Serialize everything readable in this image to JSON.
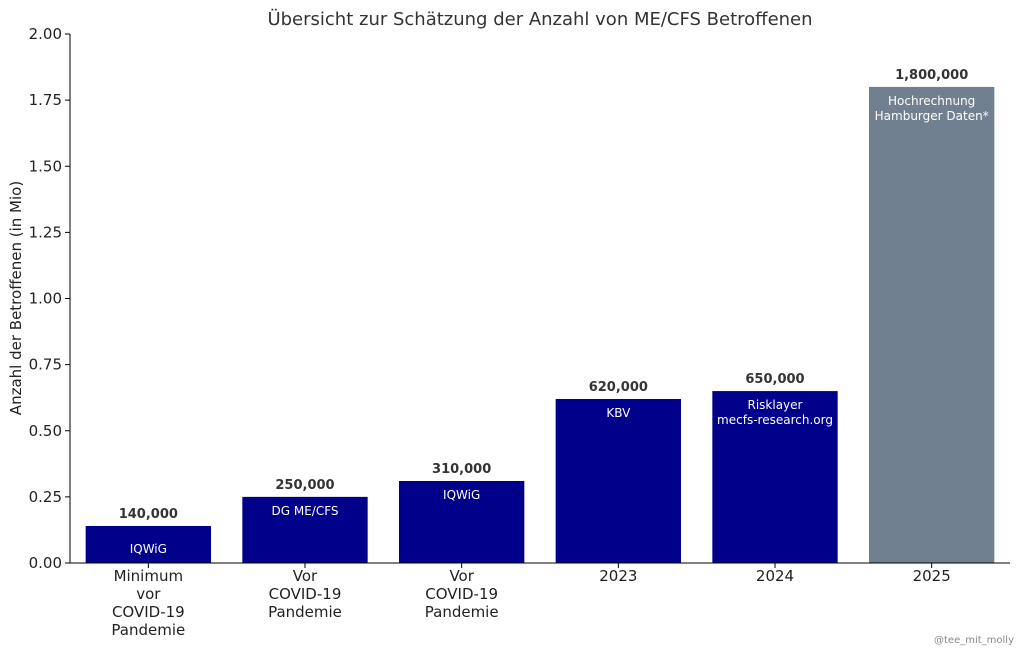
{
  "chart_data": {
    "type": "bar",
    "title": "Übersicht zur Schätzung der Anzahl von ME/CFS Betroffenen",
    "xlabel": "",
    "ylabel": "Anzahl der Betroffenen (in Mio)",
    "ylim": [
      0,
      2.0
    ],
    "yticks": [
      "0.00",
      "0.25",
      "0.50",
      "0.75",
      "1.00",
      "1.25",
      "1.50",
      "1.75",
      "2.00"
    ],
    "grid": false,
    "categories": [
      [
        "Minimum",
        "vor",
        "COVID-19",
        "Pandemie"
      ],
      [
        "Vor",
        "COVID-19",
        "Pandemie"
      ],
      [
        "Vor",
        "COVID-19",
        "Pandemie"
      ],
      [
        "2023"
      ],
      [
        "2024"
      ],
      [
        "2025"
      ]
    ],
    "values": [
      0.14,
      0.25,
      0.31,
      0.62,
      0.65,
      1.8
    ],
    "value_labels": [
      "140,000",
      "250,000",
      "310,000",
      "620,000",
      "650,000",
      "1,800,000"
    ],
    "sources": [
      [
        "IQWiG"
      ],
      [
        "DG ME/CFS"
      ],
      [
        "IQWiG"
      ],
      [
        "KBV"
      ],
      [
        "Risklayer",
        "mecfs-research.org"
      ],
      [
        "Hochrechnung",
        "Hamburger Daten*"
      ]
    ],
    "colors": [
      "#00008b",
      "#00008b",
      "#00008b",
      "#00008b",
      "#00008b",
      "#708090"
    ]
  },
  "credit": "@tee_mit_molly"
}
